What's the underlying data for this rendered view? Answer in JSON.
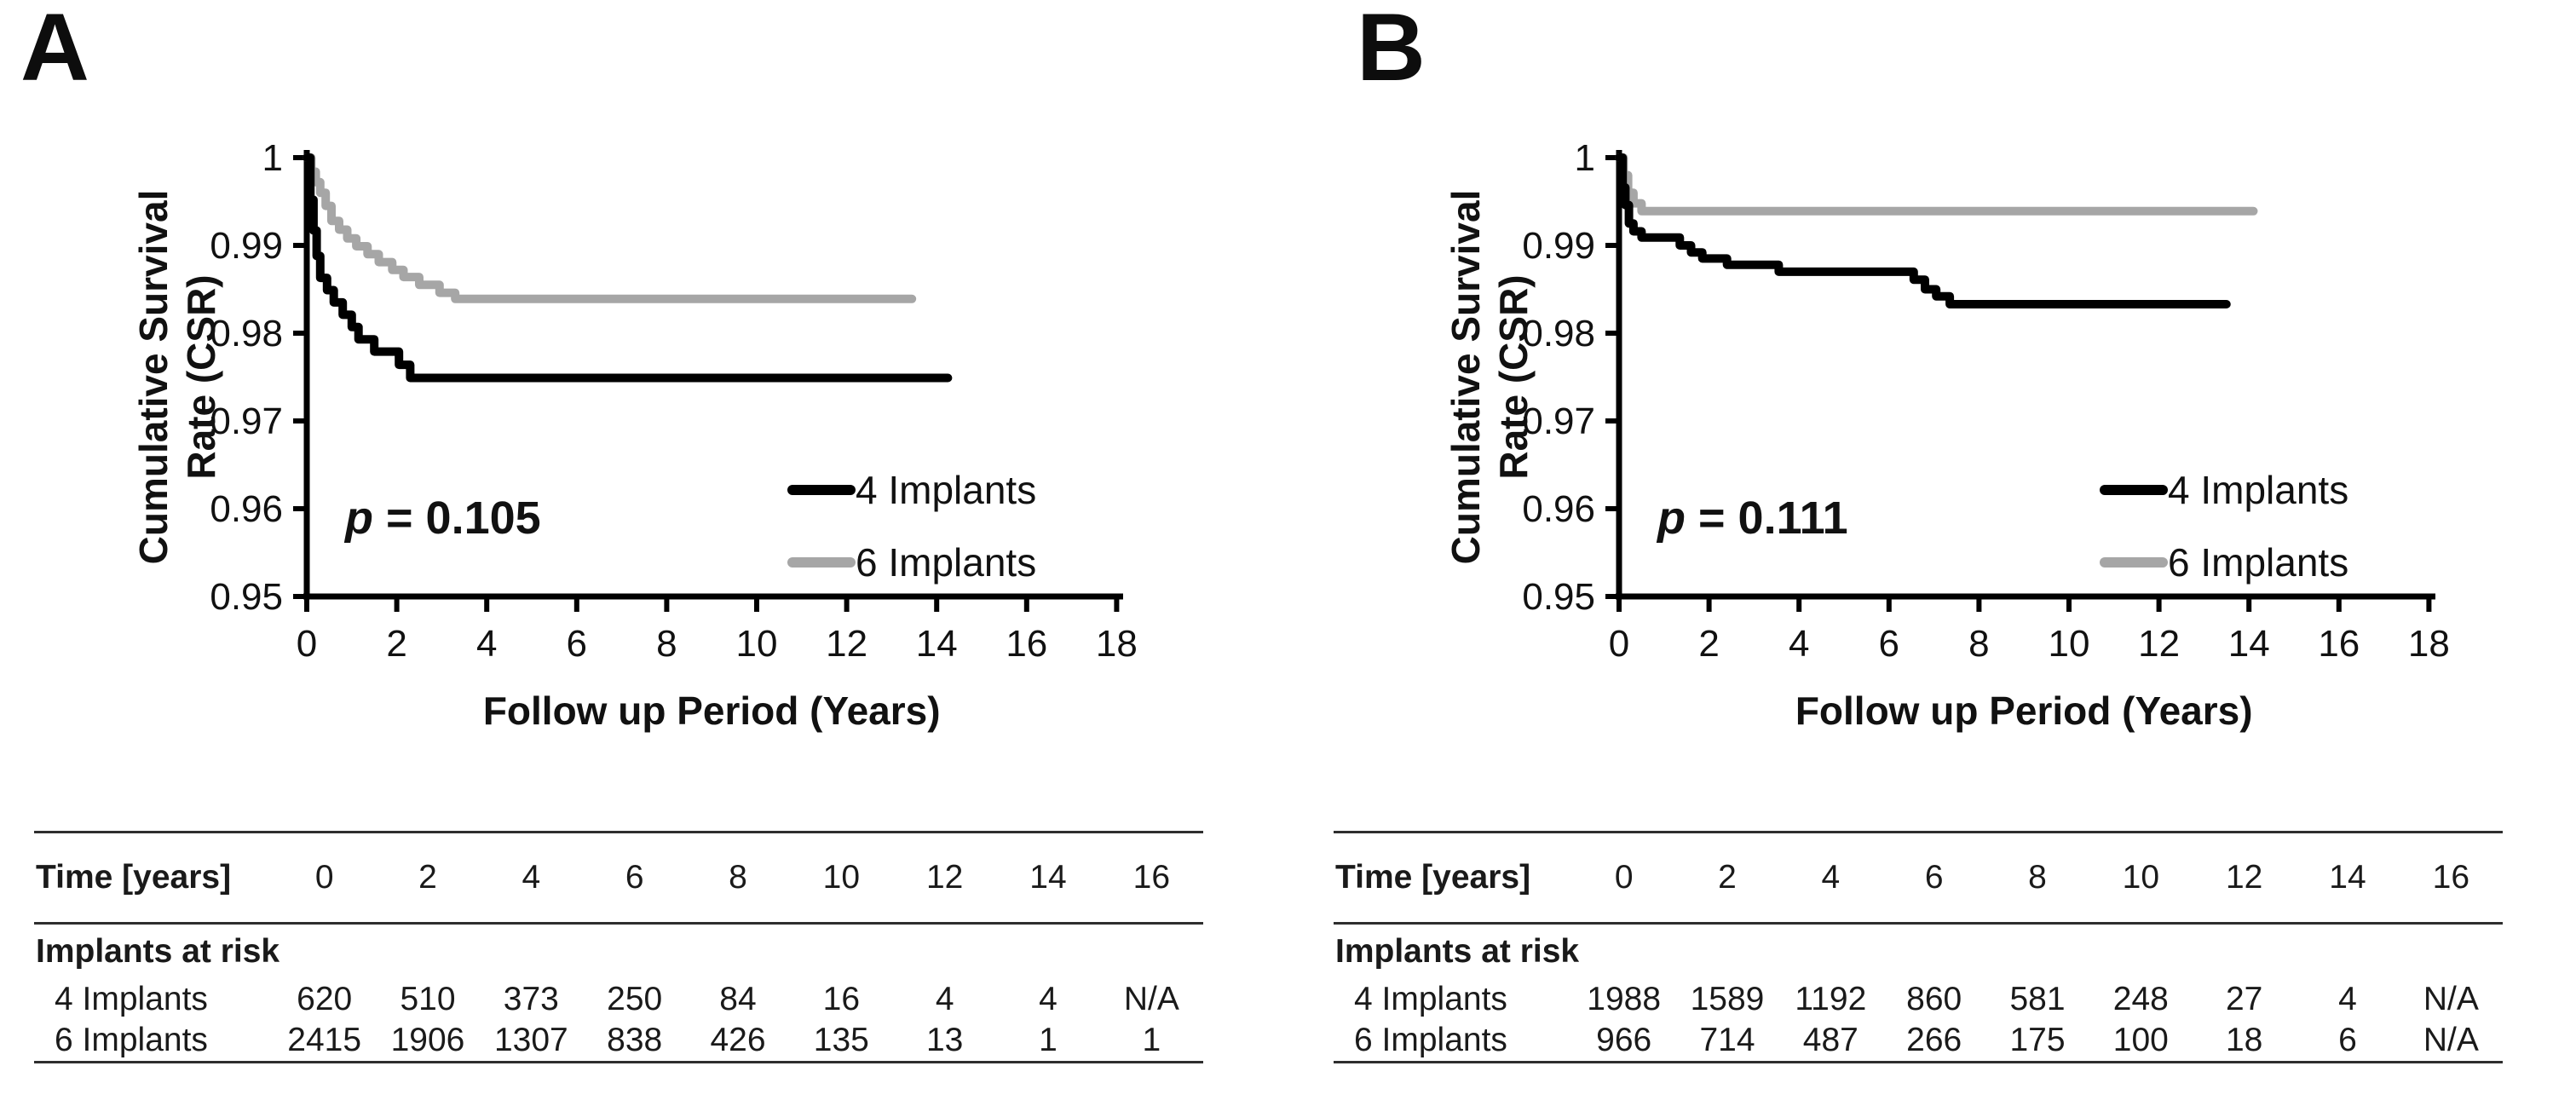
{
  "figure": {
    "panel_labels": [
      "A",
      "B"
    ]
  },
  "chart_data": [
    {
      "type": "line",
      "panel": "A",
      "step": "post",
      "xlabel": "Follow up Period (Years)",
      "ylabel": "Cumulative Survival Rate (CSR)",
      "ylabel_lines": [
        "Cumulative Survival",
        "Rate (CSR)"
      ],
      "xlim": [
        0,
        18
      ],
      "ylim": [
        0.95,
        1
      ],
      "x_ticks": [
        0,
        2,
        4,
        6,
        8,
        10,
        12,
        14,
        16,
        18
      ],
      "y_tick_labels": [
        "1",
        "0.99",
        "0.98",
        "0.97",
        "0.96",
        "0.95"
      ],
      "grid": false,
      "legend_position": "inside-right",
      "annotation": {
        "p_italic": "p",
        "p_rest": " = 0.105"
      },
      "colors": {
        "black": "#000000",
        "gray": "#a6a6a6"
      },
      "legend": [
        {
          "label": "4 Implants",
          "color": "#000000"
        },
        {
          "label": "6 Implants",
          "color": "#a6a6a6"
        }
      ],
      "series": [
        {
          "name": "4 Implants",
          "color": "#000000",
          "points": [
            [
              0,
              1
            ],
            [
              0.08,
              0.9952
            ],
            [
              0.15,
              0.9917
            ],
            [
              0.22,
              0.9888
            ],
            [
              0.3,
              0.9863
            ],
            [
              0.45,
              0.9849
            ],
            [
              0.6,
              0.9835
            ],
            [
              0.8,
              0.9821
            ],
            [
              1.0,
              0.9807
            ],
            [
              1.15,
              0.9793
            ],
            [
              1.5,
              0.9779
            ],
            [
              2.05,
              0.9764
            ],
            [
              2.3,
              0.9749
            ],
            [
              14.25,
              0.9749
            ]
          ]
        },
        {
          "name": "6 Implants",
          "color": "#a6a6a6",
          "points": [
            [
              0,
              1
            ],
            [
              0.1,
              0.9984
            ],
            [
              0.2,
              0.9972
            ],
            [
              0.3,
              0.996
            ],
            [
              0.42,
              0.9945
            ],
            [
              0.55,
              0.9928
            ],
            [
              0.72,
              0.9918
            ],
            [
              0.9,
              0.9908
            ],
            [
              1.1,
              0.9899
            ],
            [
              1.35,
              0.989
            ],
            [
              1.6,
              0.9881
            ],
            [
              1.9,
              0.9872
            ],
            [
              2.15,
              0.9864
            ],
            [
              2.5,
              0.9855
            ],
            [
              2.95,
              0.9846
            ],
            [
              3.3,
              0.9839
            ],
            [
              13.45,
              0.9839
            ]
          ]
        }
      ],
      "risk_table": {
        "header_label": "Time [years]",
        "section_label": "Implants at risk",
        "time_years": [
          "0",
          "2",
          "4",
          "6",
          "8",
          "10",
          "12",
          "14",
          "16"
        ],
        "rows": [
          {
            "label": "4 Implants",
            "values": [
              "620",
              "510",
              "373",
              "250",
              "84",
              "16",
              "4",
              "4",
              "N/A"
            ]
          },
          {
            "label": "6 Implants",
            "values": [
              "2415",
              "1906",
              "1307",
              "838",
              "426",
              "135",
              "13",
              "1",
              "1"
            ]
          }
        ]
      }
    },
    {
      "type": "line",
      "panel": "B",
      "step": "post",
      "xlabel": "Follow up Period (Years)",
      "ylabel": "Cumulative Survival Rate (CSR)",
      "ylabel_lines": [
        "Cumulative Survival",
        "Rate (CSR)"
      ],
      "xlim": [
        0,
        18
      ],
      "ylim": [
        0.95,
        1
      ],
      "x_ticks": [
        0,
        2,
        4,
        6,
        8,
        10,
        12,
        14,
        16,
        18
      ],
      "y_tick_labels": [
        "1",
        "0.99",
        "0.98",
        "0.97",
        "0.96",
        "0.95"
      ],
      "grid": false,
      "legend_position": "inside-right",
      "annotation": {
        "p_italic": "p",
        "p_rest": " = 0.111"
      },
      "colors": {
        "black": "#000000",
        "gray": "#a6a6a6"
      },
      "legend": [
        {
          "label": "4 Implants",
          "color": "#000000"
        },
        {
          "label": "6 Implants",
          "color": "#a6a6a6"
        }
      ],
      "series": [
        {
          "name": "4 Implants",
          "color": "#000000",
          "points": [
            [
              0,
              1
            ],
            [
              0.08,
              0.9966
            ],
            [
              0.14,
              0.9946
            ],
            [
              0.22,
              0.9925
            ],
            [
              0.32,
              0.9916
            ],
            [
              0.5,
              0.9909
            ],
            [
              1.35,
              0.99
            ],
            [
              1.6,
              0.9892
            ],
            [
              1.85,
              0.9885
            ],
            [
              2.4,
              0.9878
            ],
            [
              3.55,
              0.987
            ],
            [
              6.55,
              0.9861
            ],
            [
              6.8,
              0.985
            ],
            [
              7.05,
              0.9842
            ],
            [
              7.35,
              0.9833
            ],
            [
              13.5,
              0.9833
            ]
          ]
        },
        {
          "name": "6 Implants",
          "color": "#a6a6a6",
          "points": [
            [
              0,
              1
            ],
            [
              0.1,
              0.998
            ],
            [
              0.2,
              0.996
            ],
            [
              0.32,
              0.9948
            ],
            [
              0.5,
              0.9939
            ],
            [
              14.1,
              0.9939
            ]
          ]
        }
      ],
      "risk_table": {
        "header_label": "Time [years]",
        "section_label": "Implants at risk",
        "time_years": [
          "0",
          "2",
          "4",
          "6",
          "8",
          "10",
          "12",
          "14",
          "16"
        ],
        "rows": [
          {
            "label": "4 Implants",
            "values": [
              "1988",
              "1589",
              "1192",
              "860",
              "581",
              "248",
              "27",
              "4",
              "N/A"
            ]
          },
          {
            "label": "6 Implants",
            "values": [
              "966",
              "714",
              "487",
              "266",
              "175",
              "100",
              "18",
              "6",
              "N/A"
            ]
          }
        ]
      }
    }
  ]
}
